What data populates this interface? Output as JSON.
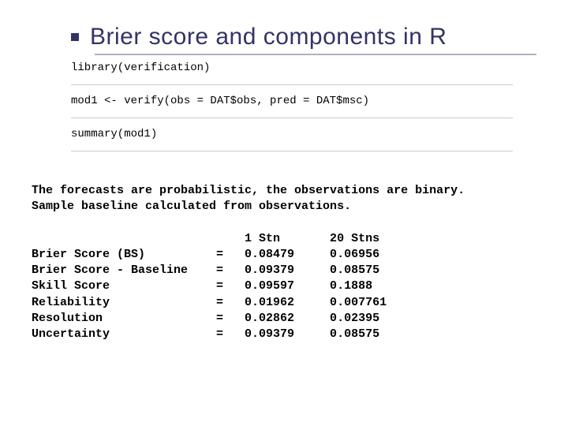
{
  "title": "Brier score and components in R",
  "code": {
    "line1": "library(verification)",
    "line2": "mod1 <- verify(obs = DAT$obs, pred = DAT$msc)",
    "line3": "summary(mod1)"
  },
  "output": {
    "desc_line1": "The forecasts are probabilistic, the observations are binary.",
    "desc_line2": "Sample baseline calculated from observations.",
    "headers": {
      "col1": "1 Stn",
      "col2": "20 Stns"
    },
    "rows": [
      {
        "label": "Brier Score (BS)",
        "eq": "=",
        "v1": "0.08479",
        "v2": "0.06956"
      },
      {
        "label": "Brier Score - Baseline",
        "eq": "=",
        "v1": "0.09379",
        "v2": "0.08575"
      },
      {
        "label": "Skill Score",
        "eq": "=",
        "v1": "0.09597",
        "v2": "0.1888"
      },
      {
        "label": "Reliability",
        "eq": "=",
        "v1": "0.01962",
        "v2": "0.007761"
      },
      {
        "label": "Resolution",
        "eq": "=",
        "v1": "0.02862",
        "v2": "0.02395"
      },
      {
        "label": "Uncertainty",
        "eq": "=",
        "v1": "0.09379",
        "v2": "0.08575"
      }
    ]
  },
  "colors": {
    "title_color": "#333366",
    "underline_color": "#b0b0c0",
    "divider_color": "#c8c8d8",
    "text_color": "#000000",
    "background": "#ffffff"
  }
}
